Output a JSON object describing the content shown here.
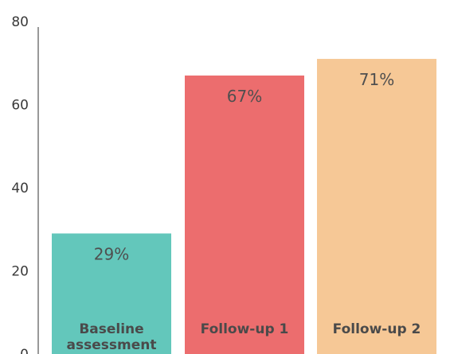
{
  "chart_data": {
    "type": "bar",
    "categories": [
      "Baseline\nassessment",
      "Follow-up 1",
      "Follow-up 2"
    ],
    "values": [
      29,
      67,
      71
    ],
    "data_labels": [
      "29%",
      "67%",
      "71%"
    ],
    "colors": [
      "#63c7bb",
      "#ec6d6e",
      "#f6c896"
    ],
    "ylim": [
      0,
      80
    ],
    "yticks": [
      "0",
      "20",
      "40",
      "60",
      "80"
    ],
    "title": "",
    "xlabel": "",
    "ylabel": "",
    "grid": false
  }
}
